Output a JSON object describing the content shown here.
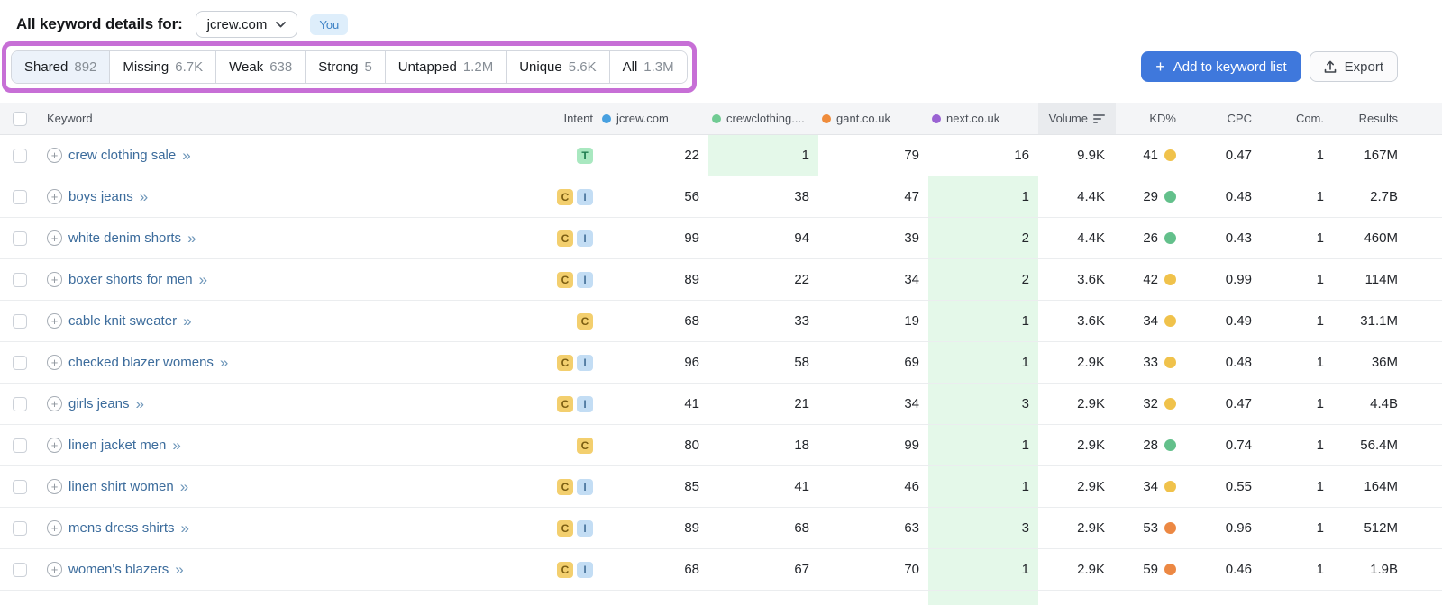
{
  "page": {
    "title": "All keyword details for:",
    "domain_selector": {
      "value": "jcrew.com"
    },
    "you_badge": "You"
  },
  "tabs": [
    {
      "label": "Shared",
      "count": "892",
      "selected": true
    },
    {
      "label": "Missing",
      "count": "6.7K",
      "selected": false
    },
    {
      "label": "Weak",
      "count": "638",
      "selected": false
    },
    {
      "label": "Strong",
      "count": "5",
      "selected": false
    },
    {
      "label": "Untapped",
      "count": "1.2M",
      "selected": false
    },
    {
      "label": "Unique",
      "count": "5.6K",
      "selected": false
    },
    {
      "label": "All",
      "count": "1.3M",
      "selected": false
    }
  ],
  "actions": {
    "add_to_keyword_list": "Add to keyword list",
    "export": "Export"
  },
  "palette": {
    "highlight_annotation": "#c76fd6",
    "primary_button": "#3f78dc",
    "best_cell_bg": "#e4f8e9",
    "kd": {
      "green": "#63c08b",
      "yellow": "#f0c24b",
      "orange": "#ec8843"
    },
    "intent": {
      "T": {
        "bg": "#a9e8c0",
        "fg": "#1f7d50"
      },
      "C": {
        "bg": "#f3cf6e",
        "fg": "#7c5e12"
      },
      "I": {
        "bg": "#c3ddf4",
        "fg": "#49759c"
      }
    }
  },
  "table": {
    "columns": {
      "keyword": "Keyword",
      "intent": "Intent",
      "volume": "Volume",
      "kd": "KD%",
      "cpc": "CPC",
      "com": "Com.",
      "results": "Results"
    },
    "competitors": [
      {
        "name": "jcrew.com",
        "color": "#47a0e0"
      },
      {
        "name": "crewclothing....",
        "color": "#70cb93"
      },
      {
        "name": "gant.co.uk",
        "color": "#ef8c3c"
      },
      {
        "name": "next.co.uk",
        "color": "#9a63d3"
      }
    ],
    "rows": [
      {
        "keyword": "crew clothing sale",
        "intents": [
          "T"
        ],
        "positions": [
          "22",
          "1",
          "79",
          "16"
        ],
        "best_index": 1,
        "volume": "9.9K",
        "kd": "41",
        "kd_level": "yellow",
        "cpc": "0.47",
        "com": "1",
        "results": "167M"
      },
      {
        "keyword": "boys jeans",
        "intents": [
          "C",
          "I"
        ],
        "positions": [
          "56",
          "38",
          "47",
          "1"
        ],
        "best_index": 3,
        "volume": "4.4K",
        "kd": "29",
        "kd_level": "green",
        "cpc": "0.48",
        "com": "1",
        "results": "2.7B"
      },
      {
        "keyword": "white denim shorts",
        "intents": [
          "C",
          "I"
        ],
        "positions": [
          "99",
          "94",
          "39",
          "2"
        ],
        "best_index": 3,
        "volume": "4.4K",
        "kd": "26",
        "kd_level": "green",
        "cpc": "0.43",
        "com": "1",
        "results": "460M"
      },
      {
        "keyword": "boxer shorts for men",
        "intents": [
          "C",
          "I"
        ],
        "positions": [
          "89",
          "22",
          "34",
          "2"
        ],
        "best_index": 3,
        "volume": "3.6K",
        "kd": "42",
        "kd_level": "yellow",
        "cpc": "0.99",
        "com": "1",
        "results": "114M"
      },
      {
        "keyword": "cable knit sweater",
        "intents": [
          "C"
        ],
        "positions": [
          "68",
          "33",
          "19",
          "1"
        ],
        "best_index": 3,
        "volume": "3.6K",
        "kd": "34",
        "kd_level": "yellow",
        "cpc": "0.49",
        "com": "1",
        "results": "31.1M"
      },
      {
        "keyword": "checked blazer womens",
        "intents": [
          "C",
          "I"
        ],
        "positions": [
          "96",
          "58",
          "69",
          "1"
        ],
        "best_index": 3,
        "volume": "2.9K",
        "kd": "33",
        "kd_level": "yellow",
        "cpc": "0.48",
        "com": "1",
        "results": "36M"
      },
      {
        "keyword": "girls jeans",
        "intents": [
          "C",
          "I"
        ],
        "positions": [
          "41",
          "21",
          "34",
          "3"
        ],
        "best_index": 3,
        "volume": "2.9K",
        "kd": "32",
        "kd_level": "yellow",
        "cpc": "0.47",
        "com": "1",
        "results": "4.4B"
      },
      {
        "keyword": "linen jacket men",
        "intents": [
          "C"
        ],
        "positions": [
          "80",
          "18",
          "99",
          "1"
        ],
        "best_index": 3,
        "volume": "2.9K",
        "kd": "28",
        "kd_level": "green",
        "cpc": "0.74",
        "com": "1",
        "results": "56.4M"
      },
      {
        "keyword": "linen shirt women",
        "intents": [
          "C",
          "I"
        ],
        "positions": [
          "85",
          "41",
          "46",
          "1"
        ],
        "best_index": 3,
        "volume": "2.9K",
        "kd": "34",
        "kd_level": "yellow",
        "cpc": "0.55",
        "com": "1",
        "results": "164M"
      },
      {
        "keyword": "mens dress shirts",
        "intents": [
          "C",
          "I"
        ],
        "positions": [
          "89",
          "68",
          "63",
          "3"
        ],
        "best_index": 3,
        "volume": "2.9K",
        "kd": "53",
        "kd_level": "orange",
        "cpc": "0.96",
        "com": "1",
        "results": "512M"
      },
      {
        "keyword": "women's blazers",
        "intents": [
          "C",
          "I"
        ],
        "positions": [
          "68",
          "67",
          "70",
          "1"
        ],
        "best_index": 3,
        "volume": "2.9K",
        "kd": "59",
        "kd_level": "orange",
        "cpc": "0.46",
        "com": "1",
        "results": "1.9B"
      }
    ]
  }
}
